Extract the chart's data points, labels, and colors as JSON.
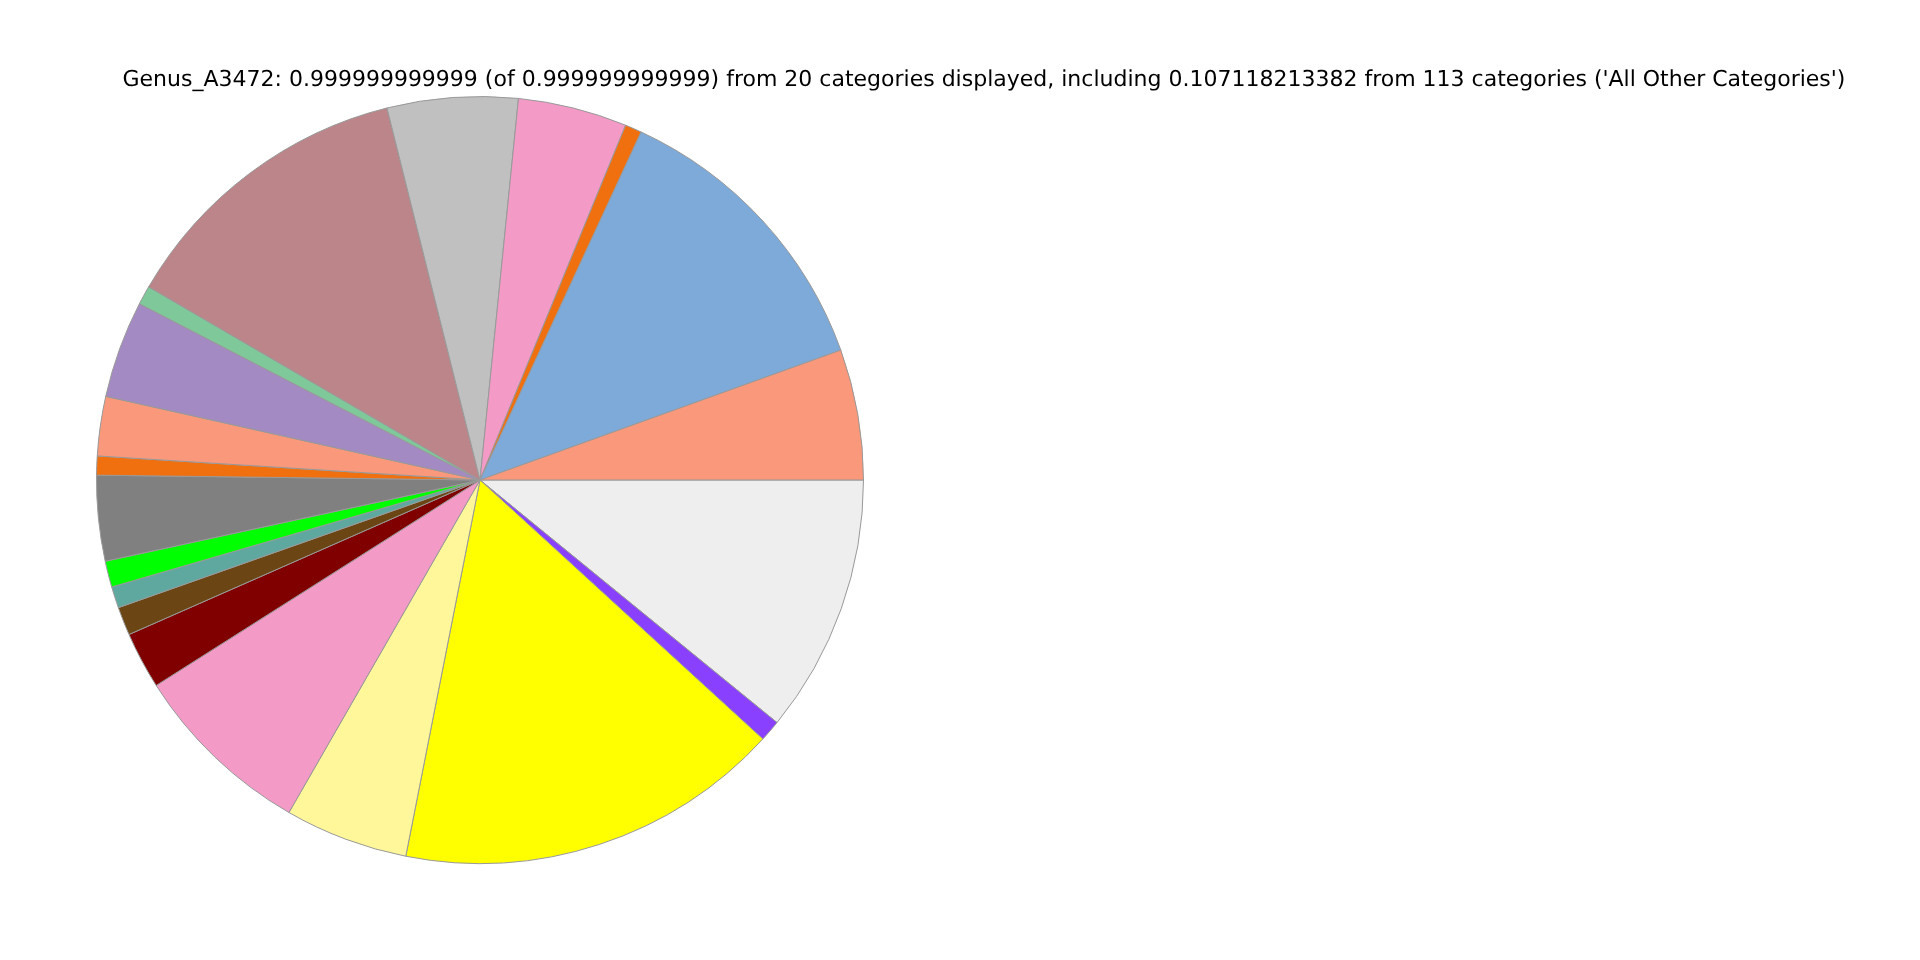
{
  "chart_data": {
    "type": "pie",
    "title": "Genus_A3472: 0.999999999999 (of 0.999999999999) from 20 categories displayed, including 0.107118213382 from 113 categories ('All Other Categories')",
    "categories": [
      null,
      null,
      null,
      null,
      null,
      null,
      null,
      null,
      null,
      null,
      null,
      null,
      null,
      null,
      null,
      null,
      null,
      null,
      null,
      null
    ],
    "values": [
      5.5,
      12.6,
      0.7,
      4.6,
      5.5,
      12.7,
      0.8,
      4.1,
      2.5,
      0.8,
      3.6,
      1.1,
      0.9,
      1.2,
      2.4,
      7.7,
      5.2,
      16.3,
      0.9,
      10.9
    ],
    "colors": [
      "#f9987a",
      "#7eaad9",
      "#f07010",
      "#f49ac6",
      "#c0c0c0",
      "#bc858a",
      "#7ec89a",
      "#a48ac2",
      "#f9987a",
      "#f07010",
      "#808080",
      "#00ff00",
      "#5fa8a0",
      "#6b4513",
      "#800000",
      "#f49ac6",
      "#fff79a",
      "#ffff00",
      "#8a40ff",
      "#eeeeee"
    ]
  }
}
